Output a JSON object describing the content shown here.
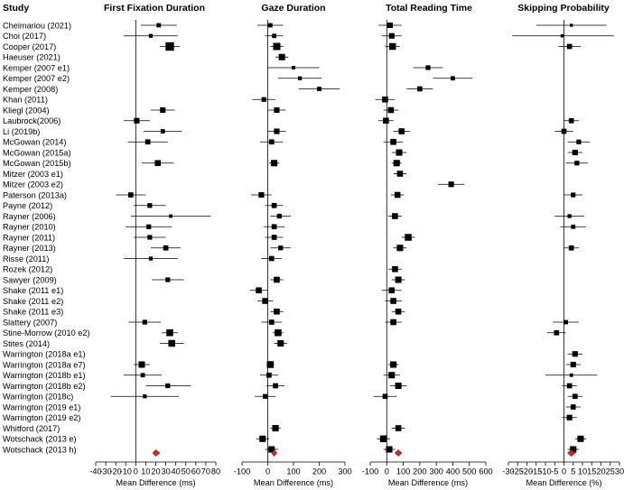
{
  "chart_data": {
    "type": "forest",
    "studies_header": "Study",
    "studies": [
      "Cheimariou (2021)",
      "Choi (2017)",
      "Cooper (2017)",
      "Haeuser (2021)",
      "Kemper (2007 e1)",
      "Kemper (2007 e2)",
      "Kemper (2008)",
      "Khan (2011)",
      "Kliegl (2004)",
      "Laubrock(2006)",
      "Li (2019b)",
      "McGowan (2014)",
      "McGowan (2015a)",
      "McGowan (2015b)",
      "Mitzer (2003 e1)",
      "Mitzer (2003 e2)",
      "Paterson (2013a)",
      "Payne (2012)",
      "Rayner (2006)",
      "Rayner (2010)",
      "Rayner (2011)",
      "Rayner (2013)",
      "Risse (2011)",
      "Rozek (2012)",
      "Sawyer (2009)",
      "Shake (2011 e1)",
      "Shake (2011 e2)",
      "Shake (2011 e3)",
      "Slattery (2007)",
      "Stine-Morrow (2010 e2)",
      "Stites (2014)",
      "Warrington (2018a e1)",
      "Warrington (2018a e7)",
      "Warrington (2018b e1)",
      "Warrington (2018b e2)",
      "Warrington (2018c)",
      "Warrington (2019 e1)",
      "Warrington (2019 e2)",
      "Whitford (2017)",
      "Wotschack (2013 e)",
      "Wotschack (2013 h)"
    ],
    "panels": [
      {
        "title": "First Fixation Duration",
        "xlabel": "Mean Difference (ms)",
        "xlim": [
          -40,
          80
        ],
        "ticks": [
          -40,
          -30,
          -20,
          -10,
          0,
          10,
          20,
          30,
          40,
          50,
          60,
          70,
          80
        ],
        "estimates": [
          [
            23,
            5,
            41,
            0.6
          ],
          [
            15,
            -12,
            42,
            0.5
          ],
          [
            34,
            24,
            44,
            1.6
          ],
          null,
          null,
          null,
          null,
          null,
          [
            27,
            15,
            39,
            0.9
          ],
          [
            1,
            -12,
            14,
            0.9
          ],
          [
            27,
            8,
            46,
            0.6
          ],
          [
            12,
            -8,
            32,
            0.8
          ],
          null,
          [
            22,
            6,
            38,
            1.0
          ],
          null,
          null,
          [
            -5,
            -20,
            10,
            0.8
          ],
          [
            14,
            -2,
            30,
            0.7
          ],
          [
            35,
            -5,
            75,
            0.4
          ],
          [
            13,
            -10,
            36,
            0.7
          ],
          [
            14,
            -2,
            30,
            0.7
          ],
          [
            30,
            15,
            45,
            0.8
          ],
          [
            15,
            -12,
            42,
            0.5
          ],
          null,
          [
            32,
            16,
            48,
            0.7
          ],
          null,
          null,
          null,
          [
            9,
            -7,
            25,
            0.7
          ],
          [
            34,
            26,
            42,
            1.2
          ],
          [
            36,
            24,
            48,
            1.2
          ],
          null,
          [
            6,
            -2,
            14,
            1.1
          ],
          [
            7,
            -12,
            26,
            0.6
          ],
          [
            32,
            10,
            55,
            0.7
          ],
          [
            9,
            -25,
            43,
            0.5
          ],
          null,
          null,
          null,
          null,
          null
        ],
        "summary": {
          "estimate": 20,
          "lower": 17,
          "upper": 24
        }
      },
      {
        "title": "Gaze Duration",
        "xlabel": "Mean Difference (ms)",
        "xlim": [
          -100,
          300
        ],
        "ticks": [
          -100,
          0,
          100,
          200,
          300
        ],
        "estimates": [
          [
            10,
            -40,
            60,
            0.6
          ],
          [
            25,
            -10,
            60,
            0.6
          ],
          [
            35,
            10,
            60,
            1.3
          ],
          [
            55,
            30,
            80,
            1.1
          ],
          [
            100,
            0,
            200,
            0.4
          ],
          [
            125,
            40,
            210,
            0.5
          ],
          [
            200,
            120,
            280,
            0.6
          ],
          [
            -15,
            -60,
            30,
            0.7
          ],
          [
            35,
            0,
            70,
            0.9
          ],
          null,
          [
            35,
            0,
            70,
            0.9
          ],
          [
            15,
            -30,
            60,
            0.8
          ],
          null,
          [
            25,
            5,
            45,
            1.1
          ],
          null,
          null,
          [
            -25,
            -65,
            15,
            0.9
          ],
          [
            25,
            -10,
            60,
            0.8
          ],
          [
            45,
            10,
            90,
            0.7
          ],
          [
            25,
            -15,
            65,
            0.8
          ],
          [
            25,
            -10,
            60,
            0.8
          ],
          [
            50,
            10,
            90,
            0.7
          ],
          [
            15,
            -25,
            55,
            0.8
          ],
          null,
          [
            35,
            10,
            60,
            1.0
          ],
          [
            -35,
            -70,
            0,
            1.0
          ],
          [
            -10,
            -40,
            20,
            1.0
          ],
          [
            35,
            10,
            60,
            1.0
          ],
          [
            15,
            -25,
            55,
            0.8
          ],
          [
            40,
            20,
            60,
            1.2
          ],
          [
            50,
            25,
            75,
            1.1
          ],
          null,
          [
            10,
            -5,
            25,
            1.2
          ],
          [
            5,
            -30,
            40,
            0.8
          ],
          [
            30,
            -5,
            65,
            0.8
          ],
          [
            -10,
            -50,
            30,
            0.7
          ],
          null,
          null,
          [
            30,
            10,
            50,
            1.1
          ],
          [
            -20,
            -45,
            5,
            1.1
          ],
          [
            15,
            -10,
            40,
            1.1
          ]
        ],
        "summary": {
          "estimate": 25,
          "lower": 15,
          "upper": 35
        }
      },
      {
        "title": "Total Reading Time",
        "xlabel": "Mean Difference (ms)",
        "xlim": [
          -100,
          600
        ],
        "ticks": [
          -100,
          0,
          100,
          200,
          300,
          400,
          500,
          600
        ],
        "estimates": [
          [
            20,
            -50,
            90,
            0.9
          ],
          [
            30,
            -30,
            90,
            0.9
          ],
          [
            35,
            -10,
            80,
            1.2
          ],
          null,
          [
            250,
            160,
            340,
            0.7
          ],
          [
            400,
            280,
            520,
            0.6
          ],
          [
            200,
            120,
            280,
            0.8
          ],
          [
            -10,
            -70,
            50,
            1.0
          ],
          [
            25,
            -20,
            70,
            1.0
          ],
          [
            -5,
            -50,
            40,
            1.0
          ],
          [
            90,
            40,
            140,
            1.0
          ],
          [
            40,
            -20,
            100,
            1.0
          ],
          [
            75,
            30,
            120,
            1.1
          ],
          [
            60,
            30,
            90,
            1.1
          ],
          [
            80,
            40,
            120,
            1.0
          ],
          [
            390,
            310,
            470,
            0.9
          ],
          [
            65,
            25,
            105,
            1.0
          ],
          null,
          [
            50,
            10,
            90,
            1.0
          ],
          null,
          [
            130,
            90,
            170,
            1.2
          ],
          [
            80,
            40,
            120,
            1.1
          ],
          null,
          [
            50,
            10,
            90,
            1.0
          ],
          [
            70,
            30,
            110,
            1.1
          ],
          [
            30,
            -30,
            90,
            1.0
          ],
          [
            40,
            -10,
            90,
            1.0
          ],
          [
            70,
            30,
            110,
            1.0
          ],
          [
            40,
            -10,
            90,
            1.0
          ],
          null,
          null,
          null,
          [
            40,
            10,
            70,
            1.1
          ],
          [
            30,
            -20,
            80,
            1.1
          ],
          [
            70,
            20,
            120,
            1.1
          ],
          [
            -10,
            -80,
            60,
            0.8
          ],
          null,
          null,
          [
            70,
            30,
            110,
            1.0
          ],
          [
            -20,
            -60,
            20,
            1.2
          ],
          [
            15,
            -20,
            50,
            1.1
          ]
        ],
        "summary": {
          "estimate": 70,
          "lower": 50,
          "upper": 90
        }
      },
      {
        "title": "Skipping Probability",
        "xlabel": "Mean Difference (%)",
        "xlim": [
          -30,
          30
        ],
        "ticks": [
          -30,
          -25,
          -20,
          -15,
          -10,
          -5,
          0,
          5,
          10,
          15,
          20,
          25,
          30
        ],
        "estimates": [
          [
            4,
            -15,
            23,
            0.3
          ],
          [
            -1,
            -28,
            27,
            0.3
          ],
          [
            3,
            -3,
            9,
            0.8
          ],
          null,
          null,
          null,
          null,
          null,
          null,
          [
            4,
            0,
            8,
            0.8
          ],
          [
            0,
            -5,
            5,
            0.8
          ],
          [
            8,
            2,
            14,
            0.7
          ],
          [
            6,
            2,
            10,
            0.9
          ],
          [
            7,
            1,
            13,
            0.7
          ],
          null,
          null,
          [
            5,
            0,
            10,
            0.7
          ],
          null,
          [
            3,
            -5,
            11,
            0.5
          ],
          [
            5,
            -2,
            12,
            0.6
          ],
          null,
          [
            4,
            0,
            8,
            0.8
          ],
          null,
          null,
          null,
          null,
          null,
          null,
          [
            1,
            -6,
            8,
            0.6
          ],
          [
            -4,
            -9,
            1,
            0.8
          ],
          null,
          [
            6,
            2,
            10,
            0.9
          ],
          [
            5,
            1,
            9,
            0.9
          ],
          [
            4,
            -10,
            18,
            0.4
          ],
          [
            3,
            -1,
            7,
            0.8
          ],
          [
            6,
            2,
            10,
            0.8
          ],
          [
            5,
            1,
            9,
            0.8
          ],
          [
            3,
            -1,
            7,
            0.9
          ],
          null,
          [
            9,
            6,
            12,
            1.1
          ],
          [
            5,
            2,
            8,
            1.1
          ]
        ],
        "summary": {
          "estimate": 4,
          "lower": 2,
          "upper": 6
        }
      }
    ],
    "summary_color": "#d42a1f"
  }
}
